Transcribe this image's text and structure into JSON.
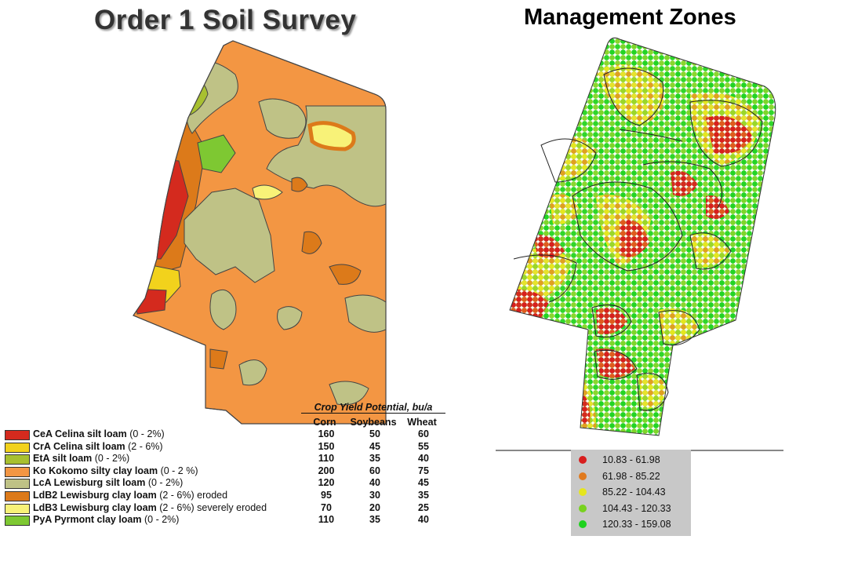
{
  "titles": {
    "soil": "Order 1 Soil Survey",
    "zones": "Management Zones"
  },
  "yield_table": {
    "header": "Crop Yield Potential, bu/a",
    "columns": [
      "Corn",
      "Soybeans",
      "Wheat"
    ]
  },
  "soil_legend": [
    {
      "code": "CeA",
      "name": "Celina silt loam",
      "range": "(0 - 2%)",
      "extra": "",
      "color": "#d42a1e",
      "corn": "160",
      "soybeans": "50",
      "wheat": "60"
    },
    {
      "code": "CrA",
      "name": "Celina silt loam",
      "range": "(2 - 6%)",
      "extra": "",
      "color": "#f2d21c",
      "corn": "150",
      "soybeans": "45",
      "wheat": "55"
    },
    {
      "code": "EtA",
      "name": "silt loam",
      "range": "(0 - 2%)",
      "extra": "",
      "color": "#a8c030",
      "corn": "110",
      "soybeans": "35",
      "wheat": "40"
    },
    {
      "code": "Ko",
      "name": "Kokomo silty clay loam",
      "range": "(0 - 2 %)",
      "extra": "",
      "color": "#f39643",
      "corn": "200",
      "soybeans": "60",
      "wheat": "75"
    },
    {
      "code": "LcA",
      "name": "Lewisburg silt loam",
      "range": "(0 - 2%)",
      "extra": "",
      "color": "#bfc286",
      "corn": "120",
      "soybeans": "40",
      "wheat": "45"
    },
    {
      "code": "LdB2",
      "name": "Lewisburg clay loam",
      "range": "(2 - 6%)",
      "extra": "eroded",
      "color": "#dc7a1a",
      "corn": "95",
      "soybeans": "30",
      "wheat": "35"
    },
    {
      "code": "LdB3",
      "name": "Lewisburg clay loam",
      "range": "(2 - 6%)",
      "extra": "severely eroded",
      "color": "#f8f278",
      "corn": "70",
      "soybeans": "20",
      "wheat": "25"
    },
    {
      "code": "PyA",
      "name": "Pyrmont clay loam",
      "range": "(0 - 2%)",
      "extra": "",
      "color": "#7ec832",
      "corn": "110",
      "soybeans": "35",
      "wheat": "40"
    }
  ],
  "zone_legend": [
    {
      "label": "10.83 - 61.98",
      "color": "#d81e1e"
    },
    {
      "label": "61.98 - 85.22",
      "color": "#e07a1e"
    },
    {
      "label": "85.22 - 104.43",
      "color": "#e6e61e"
    },
    {
      "label": "104.43 - 120.33",
      "color": "#78d21e"
    },
    {
      "label": "120.33 - 159.08",
      "color": "#1ed21e"
    }
  ]
}
